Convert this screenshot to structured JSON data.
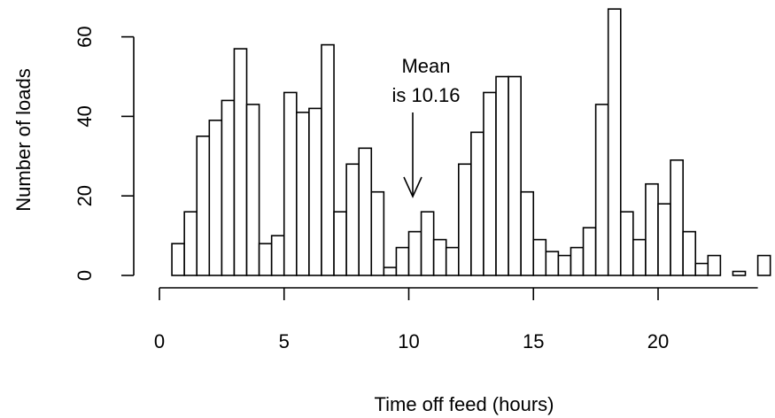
{
  "chart_data": {
    "type": "bar",
    "xlabel": "Time off feed (hours)",
    "ylabel": "Number of loads",
    "xlim": [
      0,
      24
    ],
    "ylim": [
      0,
      65
    ],
    "x_ticks": [
      0,
      5,
      10,
      15,
      20
    ],
    "y_ticks": [
      0,
      20,
      40,
      60
    ],
    "bin_width": 0.5,
    "bin_start": 0,
    "values": [
      0,
      8,
      16,
      35,
      39,
      44,
      57,
      43,
      8,
      10,
      46,
      41,
      42,
      58,
      16,
      28,
      32,
      21,
      2,
      7,
      11,
      16,
      9,
      7,
      28,
      36,
      46,
      50,
      50,
      21,
      9,
      6,
      5,
      7,
      12,
      43,
      67,
      16,
      9,
      23,
      18,
      29,
      11,
      3,
      5,
      0,
      1,
      0,
      5
    ],
    "annotation": {
      "line1": "Mean",
      "line2": "is 10.16",
      "mean": 10.16
    },
    "grid": false
  }
}
